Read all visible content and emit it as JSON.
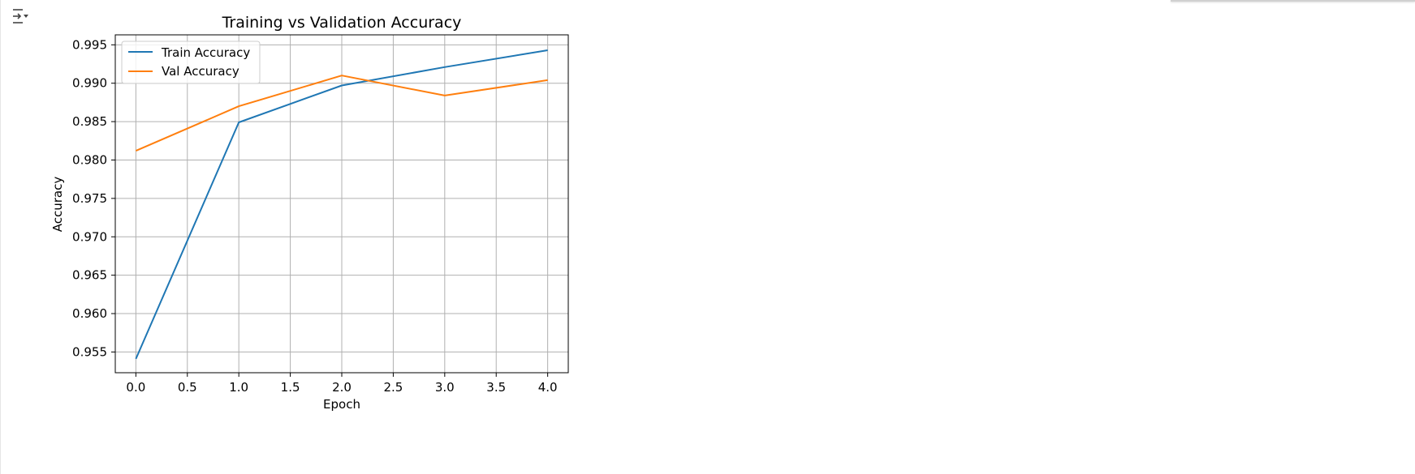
{
  "output": {
    "toggle_icon": "output-collapse-icon"
  },
  "colors": {
    "train": "#1f77b4",
    "val": "#ff7f0e",
    "grid": "#b0b0b0"
  },
  "chart_data": {
    "type": "line",
    "title": "Training vs Validation Accuracy",
    "xlabel": "Epoch",
    "ylabel": "Accuracy",
    "xlim": [
      -0.2,
      4.2
    ],
    "ylim": [
      0.9523,
      0.9963
    ],
    "xticks": [
      0.0,
      0.5,
      1.0,
      1.5,
      2.0,
      2.5,
      3.0,
      3.5,
      4.0
    ],
    "xtick_labels": [
      "0.0",
      "0.5",
      "1.0",
      "1.5",
      "2.0",
      "2.5",
      "3.0",
      "3.5",
      "4.0"
    ],
    "yticks": [
      0.955,
      0.96,
      0.965,
      0.97,
      0.975,
      0.98,
      0.985,
      0.99,
      0.995
    ],
    "ytick_labels": [
      "0.955",
      "0.960",
      "0.965",
      "0.970",
      "0.975",
      "0.980",
      "0.985",
      "0.990",
      "0.995"
    ],
    "grid": true,
    "legend_position": "top-left",
    "x": [
      0,
      1,
      2,
      3,
      4
    ],
    "series": [
      {
        "name": "Train Accuracy",
        "values": [
          0.9541,
          0.9849,
          0.9897,
          0.9921,
          0.9943
        ]
      },
      {
        "name": "Val Accuracy",
        "values": [
          0.9812,
          0.987,
          0.991,
          0.9884,
          0.9904
        ]
      }
    ]
  }
}
